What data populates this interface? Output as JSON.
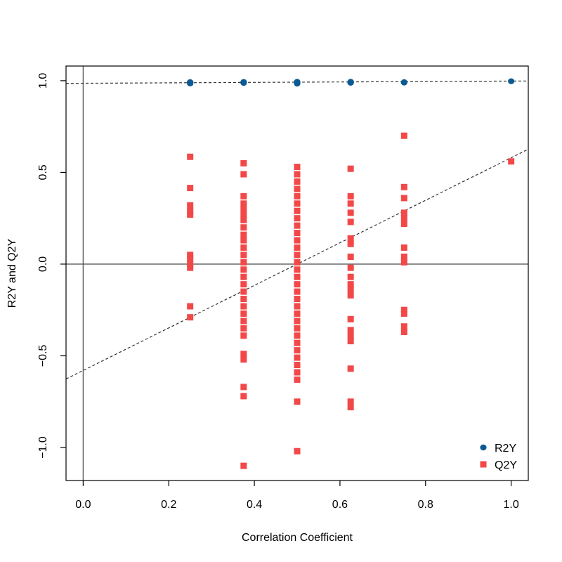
{
  "chart_data": {
    "type": "scatter",
    "xlabel": "Correlation Coefficient",
    "ylabel": "R2Y and Q2Y",
    "xlim": [
      -0.04,
      1.04
    ],
    "ylim": [
      -1.18,
      1.08
    ],
    "x_ticks": [
      {
        "value": 0.0,
        "label": "0.0"
      },
      {
        "value": 0.2,
        "label": "0.2"
      },
      {
        "value": 0.4,
        "label": "0.4"
      },
      {
        "value": 0.6,
        "label": "0.6"
      },
      {
        "value": 0.8,
        "label": "0.8"
      },
      {
        "value": 1.0,
        "label": "1.0"
      }
    ],
    "y_ticks": [
      {
        "value": -1.0,
        "label": "−1.0"
      },
      {
        "value": -0.5,
        "label": "−0.5"
      },
      {
        "value": 0.0,
        "label": "0.0"
      },
      {
        "value": 0.5,
        "label": "0.5"
      },
      {
        "value": 1.0,
        "label": "1.0"
      }
    ],
    "reference_lines": {
      "vertical_x": 0,
      "horizontal_y": 0
    },
    "series": [
      {
        "name": "R2Y",
        "marker": "circle",
        "color": "#0b5a94",
        "points": [
          [
            0.25,
            0.985
          ],
          [
            0.25,
            0.99
          ],
          [
            0.25,
            0.992
          ],
          [
            0.375,
            0.988
          ],
          [
            0.375,
            0.991
          ],
          [
            0.375,
            0.993
          ],
          [
            0.5,
            0.984
          ],
          [
            0.5,
            0.988
          ],
          [
            0.5,
            0.991
          ],
          [
            0.5,
            0.994
          ],
          [
            0.625,
            0.989
          ],
          [
            0.625,
            0.992
          ],
          [
            0.625,
            0.994
          ],
          [
            0.75,
            0.99
          ],
          [
            0.75,
            0.992
          ],
          [
            1.0,
            0.997
          ]
        ],
        "fit_line": {
          "intercept": 0.986,
          "slope": 0.012,
          "style": "dashed"
        }
      },
      {
        "name": "Q2Y",
        "marker": "square",
        "color": "#f24848",
        "points": [
          [
            0.25,
            0.585
          ],
          [
            0.25,
            0.415
          ],
          [
            0.25,
            0.32
          ],
          [
            0.25,
            0.29
          ],
          [
            0.25,
            0.27
          ],
          [
            0.25,
            0.05
          ],
          [
            0.25,
            0.03
          ],
          [
            0.25,
            0.0
          ],
          [
            0.25,
            -0.02
          ],
          [
            0.25,
            -0.23
          ],
          [
            0.25,
            -0.29
          ],
          [
            0.375,
            0.55
          ],
          [
            0.375,
            0.49
          ],
          [
            0.375,
            0.37
          ],
          [
            0.375,
            0.33
          ],
          [
            0.375,
            0.3
          ],
          [
            0.375,
            0.27
          ],
          [
            0.375,
            0.24
          ],
          [
            0.375,
            0.2
          ],
          [
            0.375,
            0.16
          ],
          [
            0.375,
            0.13
          ],
          [
            0.375,
            0.09
          ],
          [
            0.375,
            0.05
          ],
          [
            0.375,
            0.01
          ],
          [
            0.375,
            -0.03
          ],
          [
            0.375,
            -0.07
          ],
          [
            0.375,
            -0.11
          ],
          [
            0.375,
            -0.15
          ],
          [
            0.375,
            -0.19
          ],
          [
            0.375,
            -0.23
          ],
          [
            0.375,
            -0.27
          ],
          [
            0.375,
            -0.31
          ],
          [
            0.375,
            -0.35
          ],
          [
            0.375,
            -0.39
          ],
          [
            0.375,
            -0.49
          ],
          [
            0.375,
            -0.52
          ],
          [
            0.375,
            -0.67
          ],
          [
            0.375,
            -0.72
          ],
          [
            0.375,
            -1.1
          ],
          [
            0.5,
            0.53
          ],
          [
            0.5,
            0.49
          ],
          [
            0.5,
            0.45
          ],
          [
            0.5,
            0.41
          ],
          [
            0.5,
            0.37
          ],
          [
            0.5,
            0.33
          ],
          [
            0.5,
            0.29
          ],
          [
            0.5,
            0.25
          ],
          [
            0.5,
            0.21
          ],
          [
            0.5,
            0.17
          ],
          [
            0.5,
            0.13
          ],
          [
            0.5,
            0.09
          ],
          [
            0.5,
            0.05
          ],
          [
            0.5,
            0.01
          ],
          [
            0.5,
            -0.03
          ],
          [
            0.5,
            -0.07
          ],
          [
            0.5,
            -0.11
          ],
          [
            0.5,
            -0.15
          ],
          [
            0.5,
            -0.19
          ],
          [
            0.5,
            -0.23
          ],
          [
            0.5,
            -0.27
          ],
          [
            0.5,
            -0.31
          ],
          [
            0.5,
            -0.35
          ],
          [
            0.5,
            -0.39
          ],
          [
            0.5,
            -0.43
          ],
          [
            0.5,
            -0.47
          ],
          [
            0.5,
            -0.51
          ],
          [
            0.5,
            -0.55
          ],
          [
            0.5,
            -0.59
          ],
          [
            0.5,
            -0.63
          ],
          [
            0.5,
            -0.75
          ],
          [
            0.5,
            -1.02
          ],
          [
            0.625,
            0.52
          ],
          [
            0.625,
            0.37
          ],
          [
            0.625,
            0.33
          ],
          [
            0.625,
            0.28
          ],
          [
            0.625,
            0.23
          ],
          [
            0.625,
            0.14
          ],
          [
            0.625,
            0.11
          ],
          [
            0.625,
            0.04
          ],
          [
            0.625,
            -0.02
          ],
          [
            0.625,
            -0.07
          ],
          [
            0.625,
            -0.11
          ],
          [
            0.625,
            -0.14
          ],
          [
            0.625,
            -0.17
          ],
          [
            0.625,
            -0.3
          ],
          [
            0.625,
            -0.36
          ],
          [
            0.625,
            -0.39
          ],
          [
            0.625,
            -0.42
          ],
          [
            0.625,
            -0.57
          ],
          [
            0.625,
            -0.75
          ],
          [
            0.625,
            -0.78
          ],
          [
            0.75,
            0.7
          ],
          [
            0.75,
            0.42
          ],
          [
            0.75,
            0.36
          ],
          [
            0.75,
            0.28
          ],
          [
            0.75,
            0.25
          ],
          [
            0.75,
            0.22
          ],
          [
            0.75,
            0.09
          ],
          [
            0.75,
            0.04
          ],
          [
            0.75,
            0.01
          ],
          [
            0.75,
            -0.25
          ],
          [
            0.75,
            -0.27
          ],
          [
            0.75,
            -0.34
          ],
          [
            0.75,
            -0.37
          ],
          [
            1.0,
            0.56
          ]
        ],
        "fit_line": {
          "intercept": -0.58,
          "slope": 1.16,
          "style": "dashed"
        }
      }
    ],
    "legend": {
      "position": "bottom-right"
    },
    "grid": false
  }
}
